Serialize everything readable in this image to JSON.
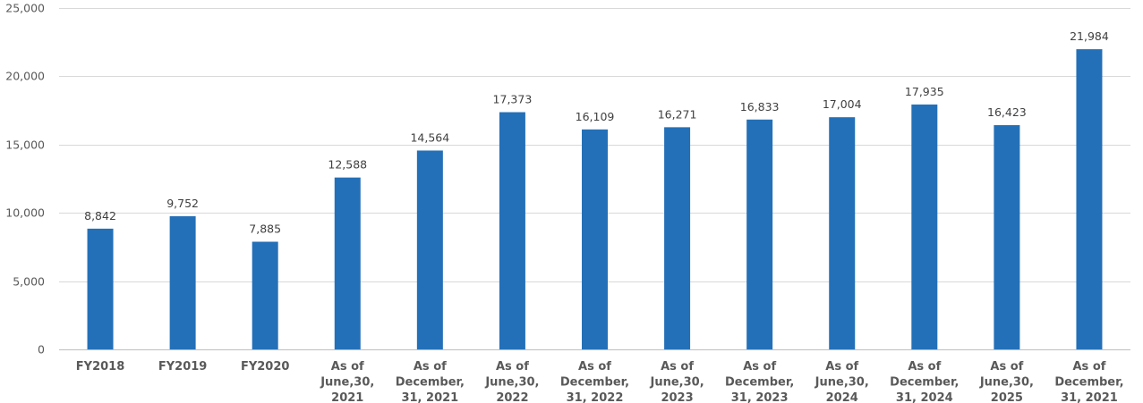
{
  "chart_data": {
    "type": "bar",
    "title": "",
    "xlabel": "",
    "ylabel": "",
    "ylim": [
      0,
      25000
    ],
    "yticks": [
      0,
      5000,
      10000,
      15000,
      20000,
      25000
    ],
    "ytick_labels": [
      "0",
      "5,000",
      "10,000",
      "15,000",
      "20,000",
      "25,000"
    ],
    "grid": true,
    "legend": "none",
    "bar_color": "#2470b8",
    "categories": [
      [
        "FY2018"
      ],
      [
        "FY2019"
      ],
      [
        "FY2020"
      ],
      [
        "As of",
        "June,30,",
        "2021"
      ],
      [
        "As of",
        "December,",
        "31, 2021"
      ],
      [
        "As of",
        "June,30,",
        "2022"
      ],
      [
        "As of",
        "December,",
        "31, 2022"
      ],
      [
        "As of",
        "June,30,",
        "2023"
      ],
      [
        "As of",
        "December,",
        "31, 2023"
      ],
      [
        "As of",
        "June,30,",
        "2024"
      ],
      [
        "As of",
        "December,",
        "31, 2024"
      ],
      [
        "As of",
        "June,30,",
        "2025"
      ],
      [
        "As of",
        "December,",
        "31, 2021"
      ]
    ],
    "values": [
      8842,
      9752,
      7885,
      12588,
      14564,
      17373,
      16109,
      16271,
      16833,
      17004,
      17935,
      16423,
      21984
    ],
    "data_labels": [
      "8,842",
      "9,752",
      "7,885",
      "12,588",
      "14,564",
      "17,373",
      "16,109",
      "16,271",
      "16,833",
      "17,004",
      "17,935",
      "16,423",
      "21,984"
    ]
  }
}
